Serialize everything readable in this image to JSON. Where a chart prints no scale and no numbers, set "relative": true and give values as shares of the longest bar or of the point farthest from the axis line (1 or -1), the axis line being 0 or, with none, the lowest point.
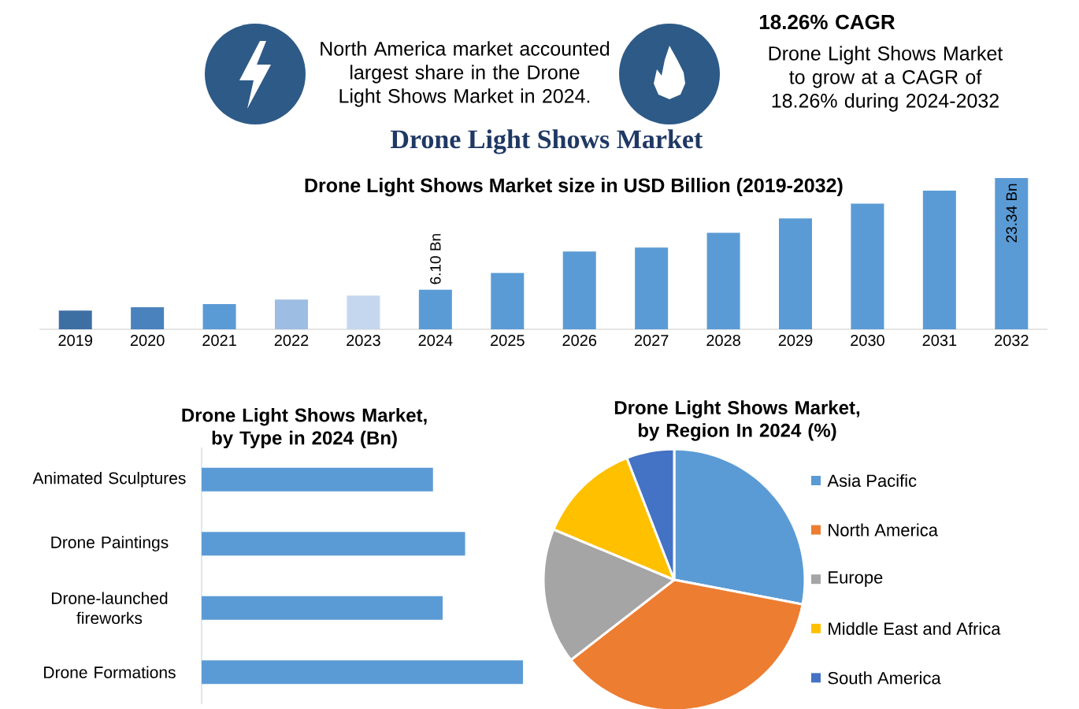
{
  "chart_data": [
    {
      "type": "other",
      "annotations": [
        "North America market accounted largest share in the Drone Light Shows Market in 2024.",
        "18.26% CAGR",
        "Drone Light Shows Market to grow at a CAGR of 18.26% during 2024-2032"
      ]
    },
    {
      "type": "bar",
      "title": "Drone Light Shows Market",
      "subtitle": "Drone Light Shows Market size in USD Billion (2019-2032)",
      "categories": [
        "2019",
        "2020",
        "2021",
        "2022",
        "2023",
        "2024",
        "2025",
        "2026",
        "2027",
        "2028",
        "2029",
        "2030",
        "2031",
        "2032"
      ],
      "values": [
        2.9,
        3.4,
        3.9,
        4.6,
        5.2,
        6.1,
        8.7,
        12,
        12.6,
        14.9,
        17.1,
        19.4,
        21.4,
        23.34
      ],
      "colors": [
        "#3e6fa3",
        "#4a82bd",
        "#5b9bd5",
        "#9dbde3",
        "#c5d7ee",
        "#5b9bd5",
        "#5b9bd5",
        "#5b9bd5",
        "#5b9bd5",
        "#5b9bd5",
        "#5b9bd5",
        "#5b9bd5",
        "#5b9bd5",
        "#5b9bd5"
      ],
      "value_labels": [
        null,
        null,
        null,
        null,
        null,
        "6.10 Bn",
        null,
        null,
        null,
        null,
        null,
        null,
        null,
        "23.34 Bn"
      ]
    },
    {
      "type": "bar",
      "orientation": "horizontal",
      "relative": true,
      "title": "Drone Light Shows Market, by Type in 2024 (Bn)",
      "categories": [
        "Animated Sculptures",
        "Drone Paintings",
        "Drone-launched fireworks",
        "Drone Formations"
      ],
      "values": [
        0.72,
        0.82,
        0.75,
        1
      ],
      "color": "#5b9bd5"
    },
    {
      "type": "pie",
      "title": "Drone Light Shows Market, by Region In 2024 (%)",
      "legend": "right",
      "categories": [
        "Asia Pacific",
        "North America",
        "Europe",
        "Middle East and Africa",
        "South America"
      ],
      "values": [
        28,
        36.5,
        16.8,
        12.8,
        5.9
      ],
      "colors": [
        "#5b9bd5",
        "#ed7d31",
        "#a5a5a5",
        "#ffc000",
        "#4472c4"
      ]
    }
  ]
}
